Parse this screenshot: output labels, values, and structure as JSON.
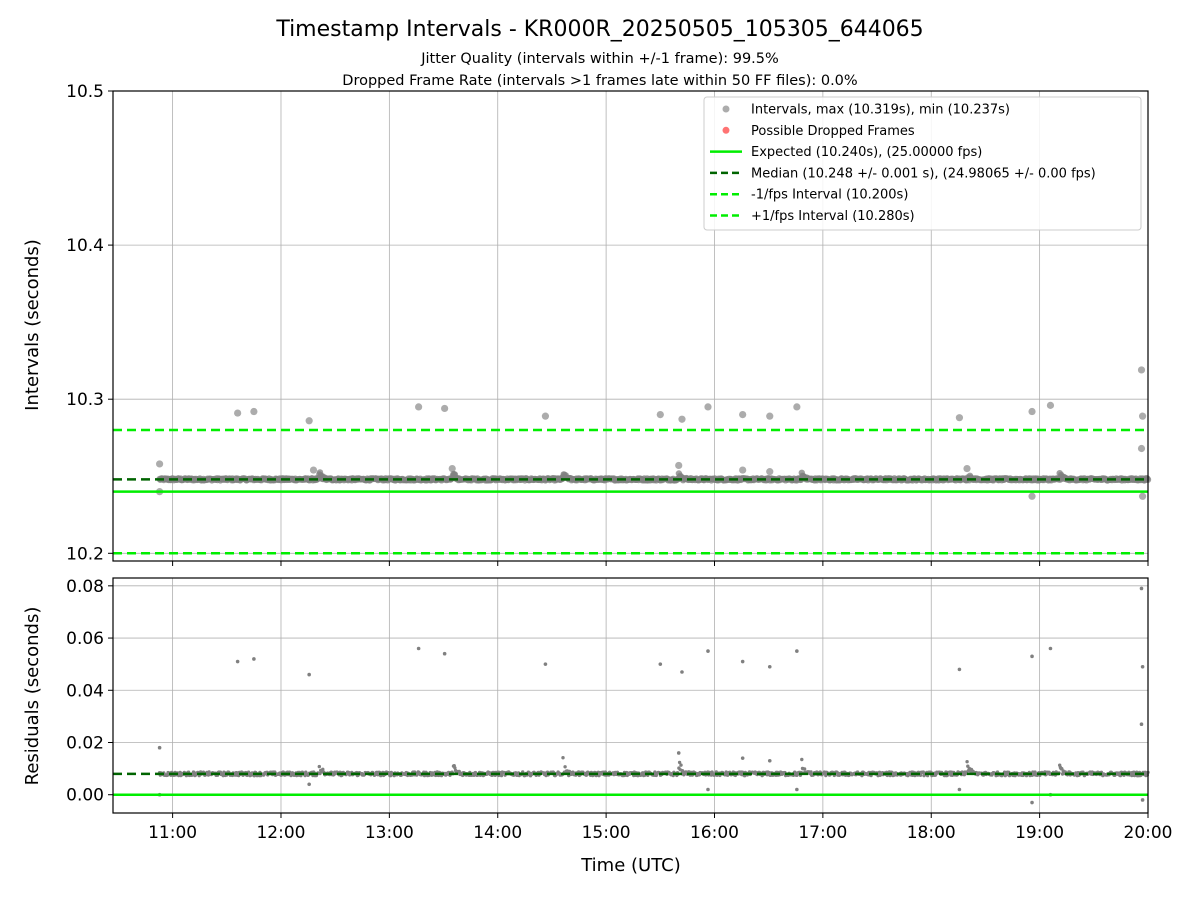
{
  "chart_data": {
    "title": "Timestamp Intervals - KR000R_20250505_105305_644065",
    "subtitle": [
      "Jitter Quality (intervals within +/-1 frame): 99.5%",
      "Dropped Frame Rate (intervals >1 frames late within 50 FF files): 0.0%"
    ],
    "xlabel": "Time (UTC)",
    "xlim": [
      10.45,
      20.0
    ],
    "x_ticks": [
      "11:00",
      "12:00",
      "13:00",
      "14:00",
      "15:00",
      "16:00",
      "17:00",
      "18:00",
      "19:00",
      "20:00"
    ],
    "grid": true,
    "colors": {
      "points": "#808080",
      "dropped": "#ff0000",
      "expected": "#00ee00",
      "median": "#006400",
      "limits": "#00ee00"
    },
    "panels": [
      {
        "type": "scatter",
        "ylabel": "Intervals (seconds)",
        "ylim": [
          10.195,
          10.5
        ],
        "y_ticks": [
          "10.2",
          "10.3",
          "10.4",
          "10.5"
        ],
        "legend_position": "top-right",
        "legend": [
          "Intervals, max (10.319s), min (10.237s)",
          "Possible Dropped Frames",
          "Expected (10.240s), (25.00000 fps)",
          "Median (10.248 +/- 0.001 s), (24.98065 +/- 0.00 fps)",
          "-1/fps Interval (10.200s)",
          "+1/fps Interval (10.280s)"
        ],
        "hlines": {
          "expected": 10.24,
          "median": 10.248,
          "minus_interval": 10.2,
          "plus_interval": 10.28
        },
        "band": {
          "x_start": 10.88,
          "x_end": 20.0,
          "center": 10.248
        },
        "outliers": [
          [
            10.88,
            10.258
          ],
          [
            11.6,
            10.291
          ],
          [
            11.75,
            10.292
          ],
          [
            12.26,
            10.286
          ],
          [
            13.27,
            10.295
          ],
          [
            13.51,
            10.294
          ],
          [
            14.44,
            10.289
          ],
          [
            15.5,
            10.29
          ],
          [
            15.7,
            10.287
          ],
          [
            15.94,
            10.295
          ],
          [
            16.26,
            10.29
          ],
          [
            16.51,
            10.289
          ],
          [
            16.76,
            10.295
          ],
          [
            18.26,
            10.288
          ],
          [
            18.93,
            10.292
          ],
          [
            19.1,
            10.296
          ],
          [
            19.94,
            10.319
          ],
          [
            19.95,
            10.289
          ],
          [
            19.94,
            10.268
          ],
          [
            18.93,
            10.237
          ],
          [
            19.95,
            10.237
          ],
          [
            15.67,
            10.257
          ],
          [
            16.26,
            10.254
          ],
          [
            16.51,
            10.253
          ],
          [
            18.33,
            10.255
          ],
          [
            12.3,
            10.254
          ],
          [
            13.58,
            10.255
          ],
          [
            10.88,
            10.24
          ]
        ]
      },
      {
        "type": "scatter",
        "ylabel": "Residuals (seconds)",
        "ylim": [
          -0.007,
          0.083
        ],
        "y_ticks": [
          "0.00",
          "0.02",
          "0.04",
          "0.06",
          "0.08"
        ],
        "hlines": {
          "expected": 0.0,
          "median": 0.008
        },
        "band": {
          "x_start": 10.88,
          "x_end": 20.0,
          "center": 0.008
        },
        "outliers": [
          [
            10.88,
            0.018
          ],
          [
            11.6,
            0.051
          ],
          [
            11.75,
            0.052
          ],
          [
            12.26,
            0.046
          ],
          [
            13.27,
            0.056
          ],
          [
            13.51,
            0.054
          ],
          [
            14.44,
            0.05
          ],
          [
            15.5,
            0.05
          ],
          [
            15.7,
            0.047
          ],
          [
            15.94,
            0.055
          ],
          [
            16.26,
            0.051
          ],
          [
            16.51,
            0.049
          ],
          [
            16.76,
            0.055
          ],
          [
            18.26,
            0.048
          ],
          [
            18.93,
            0.053
          ],
          [
            19.1,
            0.056
          ],
          [
            19.94,
            0.079
          ],
          [
            19.95,
            0.049
          ],
          [
            19.94,
            0.027
          ],
          [
            18.93,
            -0.003
          ],
          [
            19.95,
            -0.002
          ],
          [
            15.94,
            0.002
          ],
          [
            16.76,
            0.002
          ],
          [
            18.26,
            0.002
          ],
          [
            12.26,
            0.004
          ],
          [
            19.1,
            0.0
          ],
          [
            10.88,
            0.0
          ],
          [
            15.67,
            0.016
          ],
          [
            16.26,
            0.014
          ],
          [
            16.51,
            0.013
          ]
        ]
      }
    ]
  }
}
